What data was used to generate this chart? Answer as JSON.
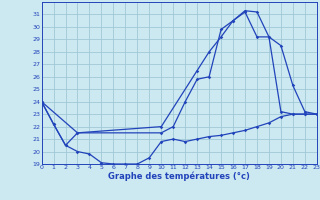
{
  "xlabel": "Graphe des températures (°c)",
  "bg_color": "#cce8f0",
  "grid_color": "#a0c8d8",
  "line_color": "#2244bb",
  "ylim": [
    19,
    32
  ],
  "xlim": [
    0,
    23
  ],
  "yticks": [
    19,
    20,
    21,
    22,
    23,
    24,
    25,
    26,
    27,
    28,
    29,
    30,
    31
  ],
  "xticks": [
    0,
    1,
    2,
    3,
    4,
    5,
    6,
    7,
    8,
    9,
    10,
    11,
    12,
    13,
    14,
    15,
    16,
    17,
    18,
    19,
    20,
    21,
    22,
    23
  ],
  "line1_x": [
    0,
    1,
    2,
    3,
    4,
    5,
    6,
    7,
    8,
    9,
    10,
    11,
    12,
    13,
    14,
    15,
    16,
    17,
    18,
    19,
    20,
    21,
    22,
    23
  ],
  "line1_y": [
    24,
    22.2,
    20.5,
    20.0,
    19.8,
    19.1,
    19.0,
    19.0,
    19.0,
    19.5,
    20.8,
    21.0,
    20.8,
    21.0,
    21.2,
    21.3,
    21.5,
    21.7,
    22.0,
    22.3,
    22.8,
    23.0,
    23.0,
    23.0
  ],
  "line2_x": [
    0,
    1,
    2,
    3,
    10,
    11,
    12,
    13,
    14,
    15,
    16,
    17,
    18,
    19,
    20,
    21,
    22,
    23
  ],
  "line2_y": [
    24,
    22.2,
    20.5,
    21.5,
    21.5,
    22.0,
    24.0,
    25.8,
    26.0,
    29.8,
    30.5,
    31.3,
    31.2,
    29.2,
    23.2,
    23.0,
    23.0,
    23.0
  ],
  "line3_x": [
    0,
    3,
    10,
    13,
    14,
    15,
    16,
    17,
    18,
    19,
    20,
    21,
    22,
    23
  ],
  "line3_y": [
    24,
    21.5,
    22.0,
    26.5,
    28.0,
    29.2,
    30.5,
    31.2,
    29.2,
    29.2,
    28.5,
    25.3,
    23.2,
    23.0
  ]
}
